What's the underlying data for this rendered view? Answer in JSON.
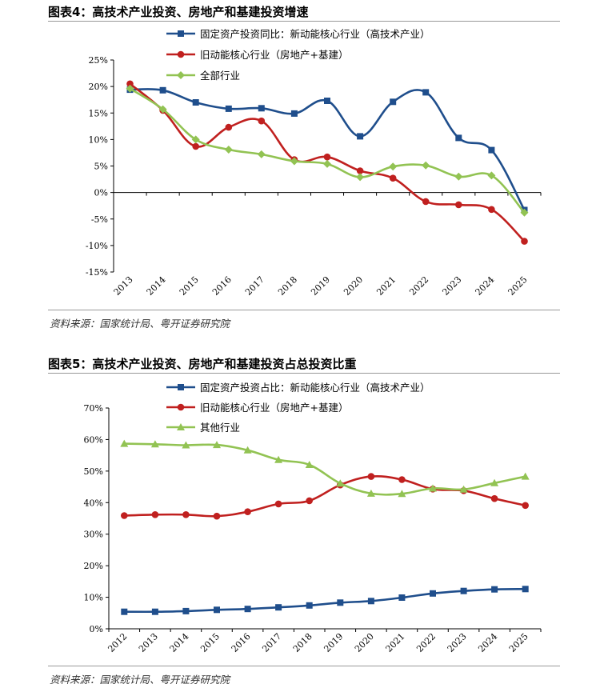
{
  "charts": [
    {
      "title": "图表4：高技术产业投资、房地产和基建投资增速",
      "source": "资料来源：国家统计局、粤开证券研究院"
    },
    {
      "title": "图表5：高技术产业投资、房地产和基建投资占总投资比重",
      "source": "资料来源：国家统计局、粤开证券研究院"
    }
  ],
  "chart_data": [
    {
      "type": "line",
      "categories": [
        "2013",
        "2014",
        "2015",
        "2016",
        "2017",
        "2018",
        "2019",
        "2020",
        "2021",
        "2022",
        "2023",
        "2024",
        "2025"
      ],
      "ylim": [
        -15,
        25
      ],
      "yticks": [
        25,
        20,
        15,
        10,
        5,
        0,
        -5,
        -10,
        -15
      ],
      "ytick_labels": [
        "25%",
        "20%",
        "15%",
        "10%",
        "5%",
        "0%",
        "-5%",
        "-10%",
        "-15%"
      ],
      "legend_position": "top-right",
      "series": [
        {
          "name": "固定资产投资同比：新动能核心行业（高技术产业）",
          "color": "#1f4e8c",
          "marker": "square",
          "values": [
            19.4,
            19.3,
            17.0,
            15.8,
            15.9,
            14.9,
            17.3,
            10.6,
            17.1,
            18.9,
            10.3,
            8.0,
            -3.3
          ]
        },
        {
          "name": "旧动能核心行业（房地产+基建）",
          "color": "#c0201f",
          "marker": "circle",
          "values": [
            20.5,
            15.5,
            8.7,
            12.3,
            13.5,
            6.2,
            6.7,
            4.1,
            2.7,
            -1.7,
            -2.3,
            -3.2,
            -9.2
          ]
        },
        {
          "name": "全部行业",
          "color": "#92c353",
          "marker": "diamond",
          "values": [
            19.6,
            15.7,
            10.0,
            8.1,
            7.2,
            5.9,
            5.4,
            2.9,
            4.9,
            5.1,
            3.0,
            3.2,
            -3.8
          ]
        }
      ]
    },
    {
      "type": "line",
      "categories": [
        "2012",
        "2013",
        "2014",
        "2015",
        "2016",
        "2017",
        "2018",
        "2019",
        "2020",
        "2021",
        "2022",
        "2023",
        "2024",
        "2025"
      ],
      "ylim": [
        0,
        70
      ],
      "yticks": [
        70,
        60,
        50,
        40,
        30,
        20,
        10,
        0
      ],
      "ytick_labels": [
        "70%",
        "60%",
        "50%",
        "40%",
        "30%",
        "20%",
        "10%",
        "0%"
      ],
      "legend_position": "top-right",
      "series": [
        {
          "name": "固定资产投资占比：新动能核心行业（高技术产业）",
          "color": "#1f4e8c",
          "marker": "square",
          "values": [
            5.4,
            5.4,
            5.6,
            6.0,
            6.3,
            6.8,
            7.4,
            8.3,
            8.8,
            9.9,
            11.2,
            12.0,
            12.5,
            12.6
          ]
        },
        {
          "name": "旧动能核心行业（房地产+基建）",
          "color": "#c0201f",
          "marker": "circle",
          "values": [
            35.9,
            36.2,
            36.2,
            35.7,
            37.1,
            39.6,
            40.6,
            45.6,
            48.3,
            47.3,
            44.3,
            43.8,
            41.3,
            39.1
          ]
        },
        {
          "name": "其他行业",
          "color": "#92c353",
          "marker": "triangle",
          "values": [
            58.7,
            58.5,
            58.2,
            58.3,
            56.6,
            53.6,
            52.0,
            46.1,
            42.9,
            42.8,
            44.5,
            44.2,
            46.2,
            48.3
          ]
        }
      ]
    }
  ]
}
